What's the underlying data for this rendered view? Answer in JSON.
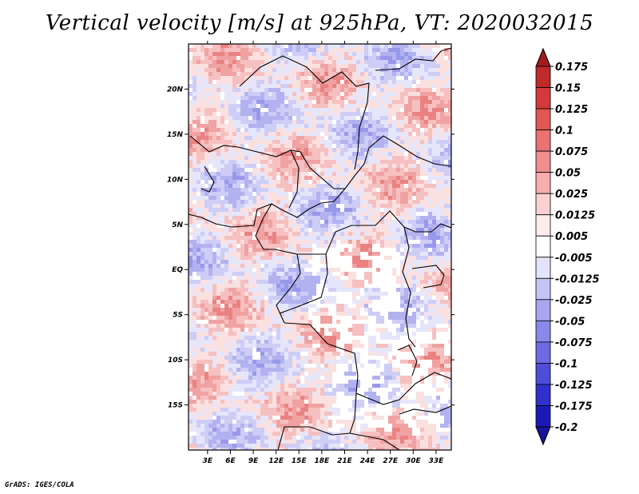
{
  "chart_data": {
    "type": "heatmap",
    "title": "Vertical velocity [m/s] at 925hPa, VT: 2020032015",
    "variable": "vertical velocity",
    "units": "m/s",
    "level": "925hPa",
    "valid_time": "2020032015",
    "x_axis": {
      "labels": [
        "3E",
        "6E",
        "9E",
        "12E",
        "15E",
        "18E",
        "21E",
        "24E",
        "27E",
        "30E",
        "33E"
      ],
      "values": [
        3,
        6,
        9,
        12,
        15,
        18,
        21,
        24,
        27,
        30,
        33
      ],
      "range": [
        0.5,
        35
      ]
    },
    "y_axis": {
      "labels": [
        "20N",
        "15N",
        "10N",
        "5N",
        "EQ",
        "5S",
        "10S",
        "15S"
      ],
      "values": [
        20,
        15,
        10,
        5,
        0,
        -5,
        -10,
        -15
      ],
      "range": [
        -20,
        25
      ]
    },
    "colorbar": {
      "labels": [
        "0.175",
        "0.15",
        "0.125",
        "0.1",
        "0.075",
        "0.05",
        "0.025",
        "0.0125",
        "0.005",
        "-0.005",
        "-0.0125",
        "-0.025",
        "-0.05",
        "-0.075",
        "-0.1",
        "-0.125",
        "-0.175",
        "-0.2"
      ],
      "colors": [
        "#a01c1c",
        "#bf2a2a",
        "#d33a3a",
        "#e35656",
        "#ea7272",
        "#f08f8f",
        "#f6adad",
        "#fad1d1",
        "#fdecec",
        "#ffffff",
        "#e3e3fa",
        "#c4c4f5",
        "#a7a7ef",
        "#8989e9",
        "#6b6be2",
        "#4d4dd8",
        "#3030cc",
        "#1b1bb4",
        "#16169c"
      ]
    }
  },
  "footer": "GrADS: IGES/COLA"
}
